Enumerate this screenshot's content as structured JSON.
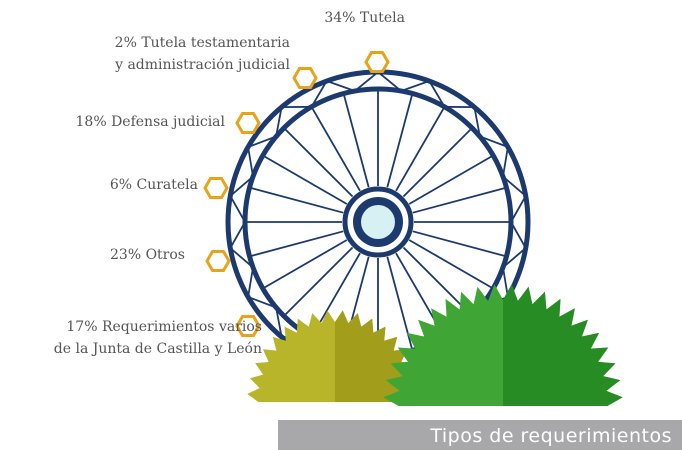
{
  "items": [
    {
      "lines": [
        "34% Tutela"
      ]
    },
    {
      "lines": [
        "2% Tutela testamentaria",
        "y administración judicial"
      ]
    },
    {
      "lines": [
        "18% Defensa judicial"
      ]
    },
    {
      "lines": [
        "6% Curatela"
      ]
    },
    {
      "lines": [
        "23% Otros"
      ]
    },
    {
      "lines": [
        "17% Requerimientos varios",
        "de la Junta de Castilla y León"
      ]
    }
  ],
  "footer": {
    "title": "Tipos de requerimientos"
  }
}
